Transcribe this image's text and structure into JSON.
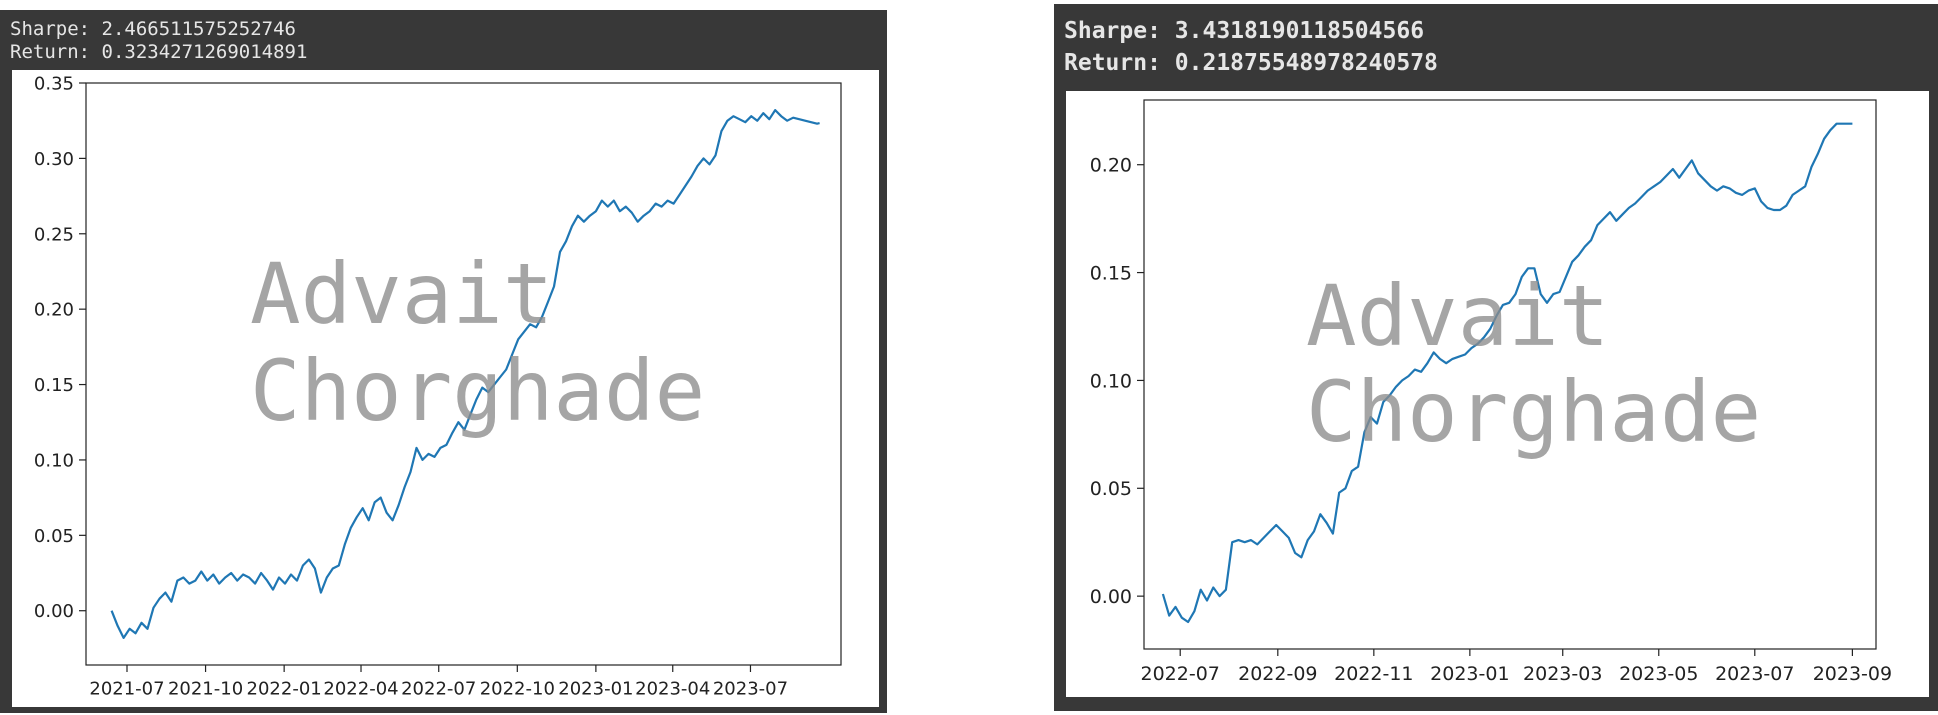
{
  "panels": [
    {
      "sharpe_label": "Sharpe:",
      "sharpe_value": "2.466511575252746",
      "return_label": "Return:",
      "return_value": "0.3234271269014891"
    },
    {
      "sharpe_label": "Sharpe:",
      "sharpe_value": "3.4318190118504566",
      "return_label": "Return:",
      "return_value": "0.21875548978240578"
    }
  ],
  "watermark": [
    "Advait",
    "Chorghade"
  ],
  "colors": {
    "line": "#1f77b4",
    "panel_bg": "#383838",
    "watermark": "#8c8c8c"
  },
  "chart_data": [
    {
      "type": "line",
      "xlabel": "",
      "ylabel": "",
      "title": "",
      "xlim": [
        "2021-05-14",
        "2023-10-15"
      ],
      "ylim": [
        -0.036,
        0.35
      ],
      "x_ticks": [
        "2021-07-01",
        "2021-10-01",
        "2022-01-01",
        "2022-04-01",
        "2022-07-01",
        "2022-10-01",
        "2023-01-01",
        "2023-04-01",
        "2023-07-01"
      ],
      "x_tick_labels": [
        "2021-07",
        "2021-10",
        "2022-01",
        "2022-04",
        "2022-07",
        "2022-10",
        "2023-01",
        "2023-04",
        "2023-07"
      ],
      "y_ticks": [
        0.0,
        0.05,
        0.1,
        0.15,
        0.2,
        0.25,
        0.3,
        0.35
      ],
      "y_tick_labels": [
        "0.00",
        "0.05",
        "0.10",
        "0.15",
        "0.20",
        "0.25",
        "0.30",
        "0.35"
      ],
      "grid": false,
      "series": [
        {
          "x": [
            "2021-06-13",
            "2021-06-20",
            "2021-06-27",
            "2021-07-04",
            "2021-07-11",
            "2021-07-18",
            "2021-07-25",
            "2021-08-01",
            "2021-08-08",
            "2021-08-15",
            "2021-08-22",
            "2021-08-29",
            "2021-09-05",
            "2021-09-12",
            "2021-09-19",
            "2021-09-26",
            "2021-10-03",
            "2021-10-10",
            "2021-10-17",
            "2021-10-24",
            "2021-10-31",
            "2021-11-07",
            "2021-11-14",
            "2021-11-21",
            "2021-11-28",
            "2021-12-05",
            "2021-12-12",
            "2021-12-19",
            "2021-12-26",
            "2022-01-02",
            "2022-01-09",
            "2022-01-16",
            "2022-01-23",
            "2022-01-30",
            "2022-02-06",
            "2022-02-13",
            "2022-02-20",
            "2022-02-27",
            "2022-03-06",
            "2022-03-13",
            "2022-03-20",
            "2022-03-27",
            "2022-04-03",
            "2022-04-10",
            "2022-04-17",
            "2022-04-24",
            "2022-05-01",
            "2022-05-08",
            "2022-05-15",
            "2022-05-22",
            "2022-05-29",
            "2022-06-05",
            "2022-06-12",
            "2022-06-19",
            "2022-06-26",
            "2022-07-03",
            "2022-07-10",
            "2022-07-17",
            "2022-07-24",
            "2022-07-31",
            "2022-08-07",
            "2022-08-14",
            "2022-08-21",
            "2022-08-28",
            "2022-09-04",
            "2022-09-11",
            "2022-09-18",
            "2022-09-25",
            "2022-10-02",
            "2022-10-09",
            "2022-10-16",
            "2022-10-23",
            "2022-10-30",
            "2022-11-06",
            "2022-11-13",
            "2022-11-20",
            "2022-11-27",
            "2022-12-04",
            "2022-12-11",
            "2022-12-18",
            "2022-12-25",
            "2023-01-01",
            "2023-01-08",
            "2023-01-15",
            "2023-01-22",
            "2023-01-29",
            "2023-02-05",
            "2023-02-12",
            "2023-02-19",
            "2023-02-26",
            "2023-03-05",
            "2023-03-12",
            "2023-03-19",
            "2023-03-26",
            "2023-04-02",
            "2023-04-09",
            "2023-04-16",
            "2023-04-23",
            "2023-04-30",
            "2023-05-07",
            "2023-05-14",
            "2023-05-21",
            "2023-05-28",
            "2023-06-04",
            "2023-06-11",
            "2023-06-18",
            "2023-06-25",
            "2023-07-02",
            "2023-07-09",
            "2023-07-16",
            "2023-07-23",
            "2023-07-30",
            "2023-08-06",
            "2023-08-13",
            "2023-08-20",
            "2023-08-27",
            "2023-09-03",
            "2023-09-10",
            "2023-09-17",
            "2023-09-20"
          ],
          "y": [
            0.0,
            -0.01,
            -0.018,
            -0.012,
            -0.015,
            -0.008,
            -0.012,
            0.002,
            0.008,
            0.012,
            0.006,
            0.02,
            0.022,
            0.018,
            0.02,
            0.026,
            0.02,
            0.024,
            0.018,
            0.022,
            0.025,
            0.02,
            0.024,
            0.022,
            0.018,
            0.025,
            0.02,
            0.014,
            0.022,
            0.018,
            0.024,
            0.02,
            0.03,
            0.034,
            0.028,
            0.012,
            0.022,
            0.028,
            0.03,
            0.044,
            0.055,
            0.062,
            0.068,
            0.06,
            0.072,
            0.075,
            0.065,
            0.06,
            0.07,
            0.082,
            0.092,
            0.108,
            0.1,
            0.104,
            0.102,
            0.108,
            0.11,
            0.118,
            0.125,
            0.12,
            0.13,
            0.14,
            0.148,
            0.145,
            0.15,
            0.155,
            0.16,
            0.17,
            0.18,
            0.185,
            0.19,
            0.188,
            0.195,
            0.205,
            0.215,
            0.238,
            0.245,
            0.255,
            0.262,
            0.258,
            0.262,
            0.265,
            0.272,
            0.268,
            0.272,
            0.265,
            0.268,
            0.264,
            0.258,
            0.262,
            0.265,
            0.27,
            0.268,
            0.272,
            0.27,
            0.276,
            0.282,
            0.288,
            0.295,
            0.3,
            0.296,
            0.302,
            0.318,
            0.325,
            0.328,
            0.326,
            0.324,
            0.328,
            0.325,
            0.33,
            0.326,
            0.332,
            0.328,
            0.325,
            0.327,
            0.326,
            0.325,
            0.324,
            0.323,
            0.3234
          ]
        }
      ]
    },
    {
      "type": "line",
      "xlabel": "",
      "ylabel": "",
      "title": "",
      "xlim": [
        "2022-06-08",
        "2023-09-16"
      ],
      "ylim": [
        -0.0245,
        0.23
      ],
      "x_ticks": [
        "2022-07-01",
        "2022-09-01",
        "2022-11-01",
        "2023-01-01",
        "2023-03-01",
        "2023-05-01",
        "2023-07-01",
        "2023-09-01"
      ],
      "x_tick_labels": [
        "2022-07",
        "2022-09",
        "2022-11",
        "2023-01",
        "2023-03",
        "2023-05",
        "2023-07",
        "2023-09"
      ],
      "y_ticks": [
        0.0,
        0.05,
        0.1,
        0.15,
        0.2
      ],
      "y_tick_labels": [
        "0.00",
        "0.05",
        "0.10",
        "0.15",
        "0.20"
      ],
      "grid": false,
      "series": [
        {
          "x": [
            "2022-06-20",
            "2022-06-24",
            "2022-06-28",
            "2022-07-02",
            "2022-07-06",
            "2022-07-10",
            "2022-07-14",
            "2022-07-18",
            "2022-07-22",
            "2022-07-26",
            "2022-07-30",
            "2022-08-03",
            "2022-08-07",
            "2022-08-11",
            "2022-08-15",
            "2022-08-19",
            "2022-08-23",
            "2022-08-27",
            "2022-08-31",
            "2022-09-04",
            "2022-09-08",
            "2022-09-12",
            "2022-09-16",
            "2022-09-20",
            "2022-09-24",
            "2022-09-28",
            "2022-10-02",
            "2022-10-06",
            "2022-10-10",
            "2022-10-14",
            "2022-10-18",
            "2022-10-22",
            "2022-10-26",
            "2022-10-30",
            "2022-11-03",
            "2022-11-07",
            "2022-11-11",
            "2022-11-15",
            "2022-11-19",
            "2022-11-23",
            "2022-11-27",
            "2022-12-01",
            "2022-12-05",
            "2022-12-09",
            "2022-12-13",
            "2022-12-17",
            "2022-12-21",
            "2022-12-25",
            "2022-12-29",
            "2023-01-02",
            "2023-01-06",
            "2023-01-10",
            "2023-01-14",
            "2023-01-18",
            "2023-01-22",
            "2023-01-26",
            "2023-01-30",
            "2023-02-03",
            "2023-02-07",
            "2023-02-11",
            "2023-02-15",
            "2023-02-19",
            "2023-02-23",
            "2023-02-27",
            "2023-03-03",
            "2023-03-07",
            "2023-03-11",
            "2023-03-15",
            "2023-03-19",
            "2023-03-23",
            "2023-03-27",
            "2023-03-31",
            "2023-04-04",
            "2023-04-08",
            "2023-04-12",
            "2023-04-16",
            "2023-04-20",
            "2023-04-24",
            "2023-04-28",
            "2023-05-02",
            "2023-05-06",
            "2023-05-10",
            "2023-05-14",
            "2023-05-18",
            "2023-05-22",
            "2023-05-26",
            "2023-05-30",
            "2023-06-03",
            "2023-06-07",
            "2023-06-11",
            "2023-06-15",
            "2023-06-19",
            "2023-06-23",
            "2023-06-27",
            "2023-07-01",
            "2023-07-05",
            "2023-07-09",
            "2023-07-13",
            "2023-07-17",
            "2023-07-21",
            "2023-07-25",
            "2023-07-29",
            "2023-08-02",
            "2023-08-06",
            "2023-08-10",
            "2023-08-14",
            "2023-08-18",
            "2023-08-22",
            "2023-08-26",
            "2023-08-30",
            "2023-09-01"
          ],
          "y": [
            0.001,
            -0.009,
            -0.005,
            -0.01,
            -0.012,
            -0.007,
            0.003,
            -0.002,
            0.004,
            0.0,
            0.003,
            0.025,
            0.026,
            0.025,
            0.026,
            0.024,
            0.027,
            0.03,
            0.033,
            0.03,
            0.027,
            0.02,
            0.018,
            0.026,
            0.03,
            0.038,
            0.034,
            0.029,
            0.048,
            0.05,
            0.058,
            0.06,
            0.076,
            0.083,
            0.08,
            0.09,
            0.093,
            0.097,
            0.1,
            0.102,
            0.105,
            0.104,
            0.108,
            0.113,
            0.11,
            0.108,
            0.11,
            0.111,
            0.112,
            0.115,
            0.117,
            0.12,
            0.124,
            0.13,
            0.135,
            0.136,
            0.14,
            0.148,
            0.152,
            0.152,
            0.14,
            0.136,
            0.14,
            0.141,
            0.148,
            0.155,
            0.158,
            0.162,
            0.165,
            0.172,
            0.175,
            0.178,
            0.174,
            0.177,
            0.18,
            0.182,
            0.185,
            0.188,
            0.19,
            0.192,
            0.195,
            0.198,
            0.194,
            0.198,
            0.202,
            0.196,
            0.193,
            0.19,
            0.188,
            0.19,
            0.189,
            0.187,
            0.186,
            0.188,
            0.189,
            0.183,
            0.18,
            0.179,
            0.179,
            0.181,
            0.186,
            0.188,
            0.19,
            0.199,
            0.205,
            0.212,
            0.216,
            0.219,
            0.219,
            0.219,
            0.219
          ]
        }
      ]
    }
  ]
}
